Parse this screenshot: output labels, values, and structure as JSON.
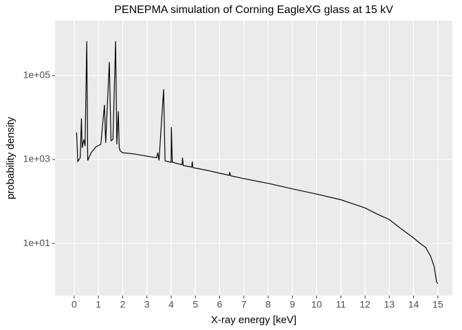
{
  "chart_data": {
    "type": "line",
    "title": "PENEPMA simulation of Corning EagleXG glass at 15 kV",
    "x_label": "X-ray energy [keV]",
    "y_label": "probability density",
    "log_y": true,
    "grid": true,
    "color": "#000000",
    "xlim": [
      -0.79,
      15.6
    ],
    "ylim": [
      0.57,
      2040000
    ],
    "xticks": [
      0,
      1,
      2,
      3,
      4,
      5,
      6,
      7,
      8,
      9,
      10,
      11,
      12,
      13,
      14,
      15
    ],
    "yticks": [
      {
        "value": 10,
        "label": "1e+01"
      },
      {
        "value": 1000,
        "label": "1e+03"
      },
      {
        "value": 100000,
        "label": "1e+05"
      }
    ],
    "x": [
      0.1,
      0.15,
      0.25,
      0.3,
      0.33,
      0.4,
      0.45,
      0.52,
      0.56,
      0.7,
      0.9,
      1.1,
      1.25,
      1.3,
      1.45,
      1.52,
      1.6,
      1.71,
      1.76,
      1.82,
      1.86,
      1.9,
      2.0,
      2.5,
      3.0,
      3.4,
      3.45,
      3.5,
      3.69,
      3.75,
      4.0,
      4.01,
      4.05,
      4.45,
      4.47,
      4.5,
      4.85,
      4.87,
      4.9,
      5.5,
      6,
      6.4,
      6.42,
      6.45,
      7,
      8,
      9,
      10,
      11,
      12,
      12.5,
      13,
      13.5,
      14,
      14.3,
      14.5,
      14.7,
      14.85,
      14.95,
      15.0
    ],
    "values": [
      4400,
      900,
      1100,
      9500,
      1900,
      3000,
      2100,
      660000,
      950,
      1450,
      2000,
      2300,
      20000,
      2500,
      210000,
      2800,
      3000,
      660000,
      2300,
      14000,
      1900,
      1600,
      1450,
      1350,
      1200,
      1100,
      1450,
      950,
      47000,
      930,
      860,
      5900,
      860,
      750,
      1100,
      720,
      660,
      900,
      640,
      550,
      470,
      420,
      500,
      410,
      350,
      270,
      200,
      150,
      110,
      70,
      50,
      37,
      22,
      13.5,
      9.7,
      8,
      5,
      2.8,
      1.2,
      1.1
    ]
  }
}
